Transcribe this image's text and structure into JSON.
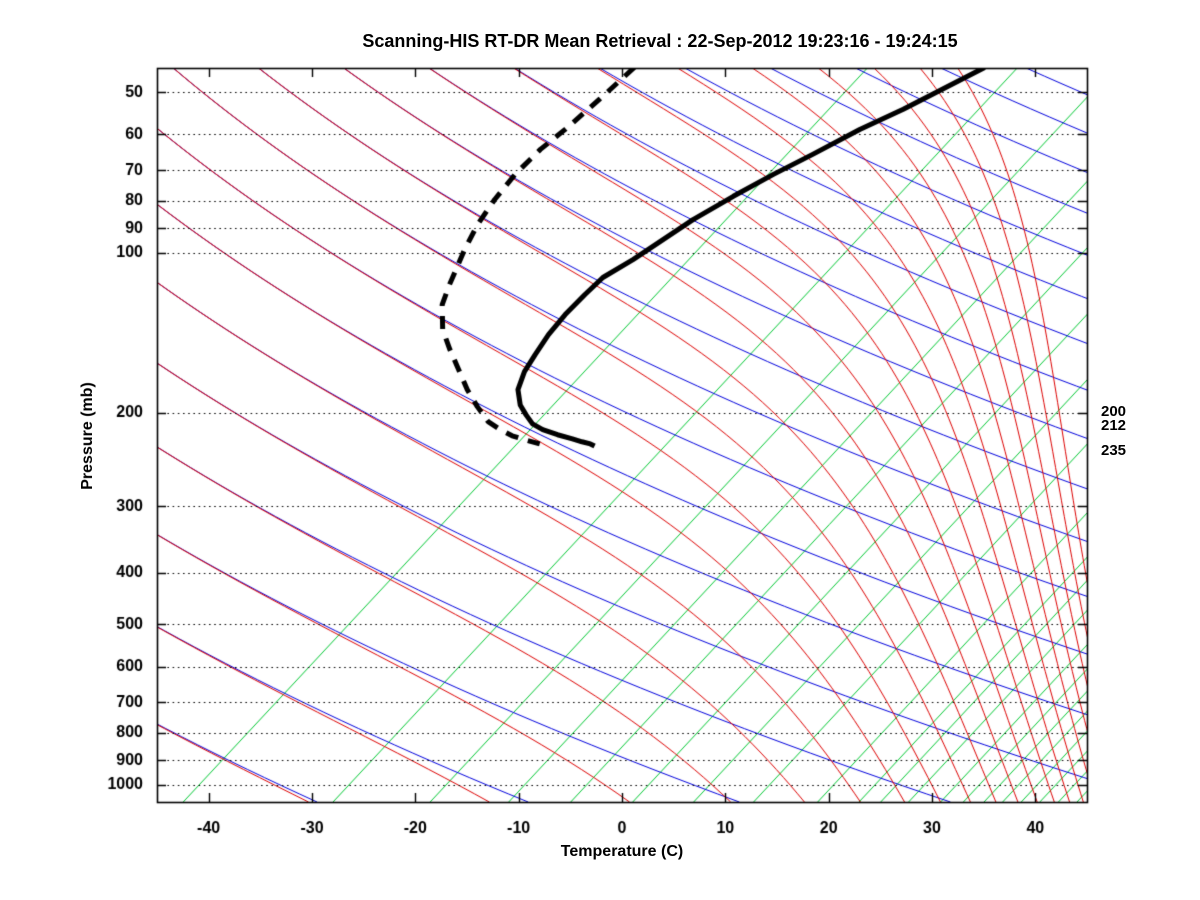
{
  "title": "Scanning-HIS RT-DR Mean Retrieval : 22-Sep-2012 19:23:16 - 19:24:15",
  "chart_data": {
    "type": "line",
    "subtype": "skewt_log_p_sounding",
    "title": "Scanning-HIS RT-DR Mean Retrieval : 22-Sep-2012 19:23:16 - 19:24:15",
    "xlabel": "Temperature (C)",
    "ylabel": "Pressure (mb)",
    "x_ticks": [
      -40,
      -30,
      -20,
      -10,
      0,
      10,
      20,
      30,
      40
    ],
    "pressure_ticks": [
      50,
      60,
      70,
      80,
      90,
      100,
      200,
      300,
      400,
      500,
      600,
      700,
      800,
      900,
      1000
    ],
    "right_pressure_labels": [
      200,
      212,
      235
    ],
    "xlim": [
      -45,
      45
    ],
    "pressure_lim_mb": [
      45,
      1078
    ],
    "skew_deg_per_decade": 48,
    "grid": "dotted horizontal isobars at labeled pressure ticks",
    "legend": "none",
    "background_lines": {
      "isotherms_green_C": [
        -40.9,
        -26.4,
        -17.0,
        -9.4,
        -3.4,
        2.6,
        8.5,
        14.3,
        20.5,
        24.5,
        26.6,
        29.3,
        32.4,
        34.6,
        36.6,
        38.4,
        40.2,
        42.0,
        43.8,
        45.6
      ],
      "dry_adiabats_theta_K": [
        240,
        260,
        280,
        300,
        320,
        340,
        360,
        380,
        400,
        420,
        440,
        460,
        480,
        500,
        520,
        540,
        560,
        580,
        600,
        620
      ],
      "moist_adiabats_theta_e_K": [
        240,
        260,
        280,
        300,
        320,
        340,
        360,
        380,
        400,
        420,
        440,
        460,
        480,
        500,
        520,
        540,
        560,
        580,
        600,
        620
      ]
    },
    "series": [
      {
        "name": "temperature",
        "style": "solid",
        "points_p_T": [
          [
            44.9,
            -29.6
          ],
          [
            49.3,
            -31.7
          ],
          [
            53.8,
            -33.7
          ],
          [
            58.7,
            -36.1
          ],
          [
            65.4,
            -38.4
          ],
          [
            71.3,
            -40.4
          ],
          [
            78.4,
            -42.3
          ],
          [
            86.7,
            -44.1
          ],
          [
            95.4,
            -45.3
          ],
          [
            103.1,
            -46.3
          ],
          [
            111.4,
            -47.6
          ],
          [
            119.9,
            -47.8
          ],
          [
            130.8,
            -47.9
          ],
          [
            142.7,
            -47.7
          ],
          [
            155.5,
            -47.2
          ],
          [
            167.4,
            -46.7
          ],
          [
            181.0,
            -45.7
          ],
          [
            193.4,
            -44.1
          ],
          [
            202.1,
            -42.6
          ],
          [
            209.9,
            -41.2
          ],
          [
            215.2,
            -39.7
          ],
          [
            220.0,
            -37.8
          ],
          [
            223.9,
            -36.0
          ],
          [
            226.8,
            -34.8
          ],
          [
            228.9,
            -33.8
          ],
          [
            231.0,
            -33.2
          ]
        ]
      },
      {
        "name": "dewpoint",
        "style": "dashed",
        "points_p_T": [
          [
            44.9,
            -63.5
          ],
          [
            51.5,
            -64.0
          ],
          [
            58.7,
            -64.6
          ],
          [
            64.0,
            -65.2
          ],
          [
            71.3,
            -65.4
          ],
          [
            79.5,
            -65.1
          ],
          [
            88.6,
            -64.5
          ],
          [
            98.7,
            -63.5
          ],
          [
            114.9,
            -61.8
          ],
          [
            125.3,
            -60.7
          ],
          [
            139.6,
            -58.4
          ],
          [
            152.2,
            -55.9
          ],
          [
            164.6,
            -53.5
          ],
          [
            181.0,
            -50.6
          ],
          [
            194.8,
            -48.1
          ],
          [
            207.9,
            -45.7
          ],
          [
            215.2,
            -43.8
          ],
          [
            221.0,
            -42.1
          ],
          [
            224.9,
            -40.5
          ],
          [
            228.9,
            -38.7
          ]
        ]
      }
    ],
    "colors": {
      "isotherm_green": "#00c832",
      "dry_adiabat_blue": "#0000dd",
      "moist_adiabat_red": "#dd0000",
      "profile_black": "#000000",
      "frame_black": "#000000",
      "background": "#ffffff"
    }
  }
}
